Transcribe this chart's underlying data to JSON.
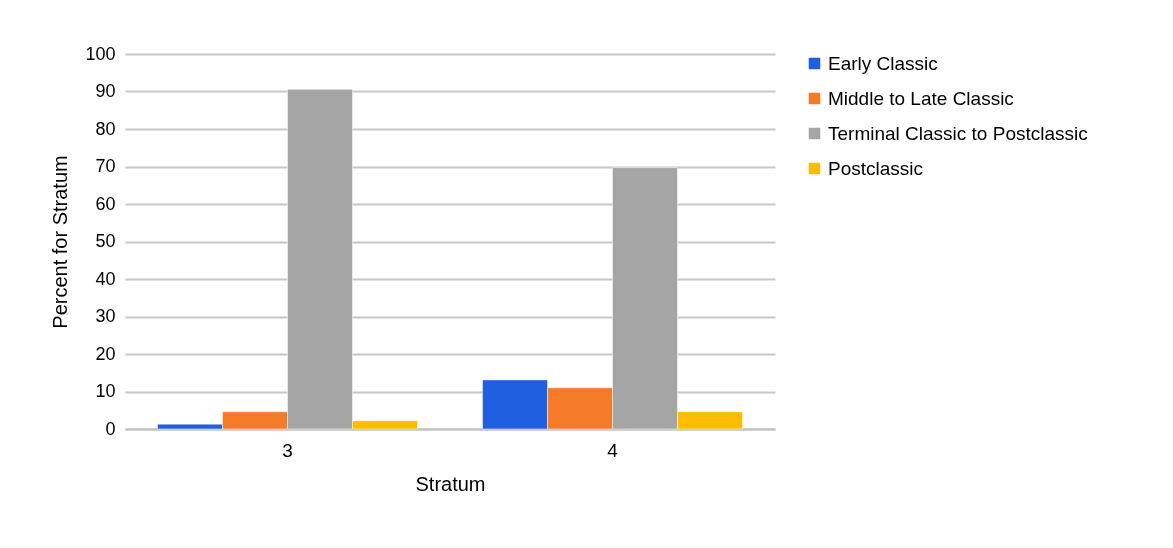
{
  "chart_data": {
    "type": "bar",
    "xlabel": "Stratum",
    "ylabel": "Percent for Stratum",
    "categories": [
      "3",
      "4"
    ],
    "series": [
      {
        "name": "Early Classic",
        "color": "#1f5fe0",
        "values": [
          1.3,
          13.1
        ]
      },
      {
        "name": "Middle to Late Classic",
        "color": "#f47b27",
        "values": [
          4.6,
          11
        ]
      },
      {
        "name": "Terminal Classic to Postclassic",
        "color": "#a5a5a5",
        "values": [
          90.6,
          69.7
        ]
      },
      {
        "name": "Postclassic",
        "color": "#fbbd00",
        "values": [
          2.2,
          4.6
        ]
      }
    ],
    "ylim": [
      0,
      100
    ],
    "yticks": [
      0,
      10,
      20,
      30,
      40,
      50,
      60,
      70,
      80,
      90,
      100
    ],
    "grid": "y",
    "legend": "right"
  }
}
